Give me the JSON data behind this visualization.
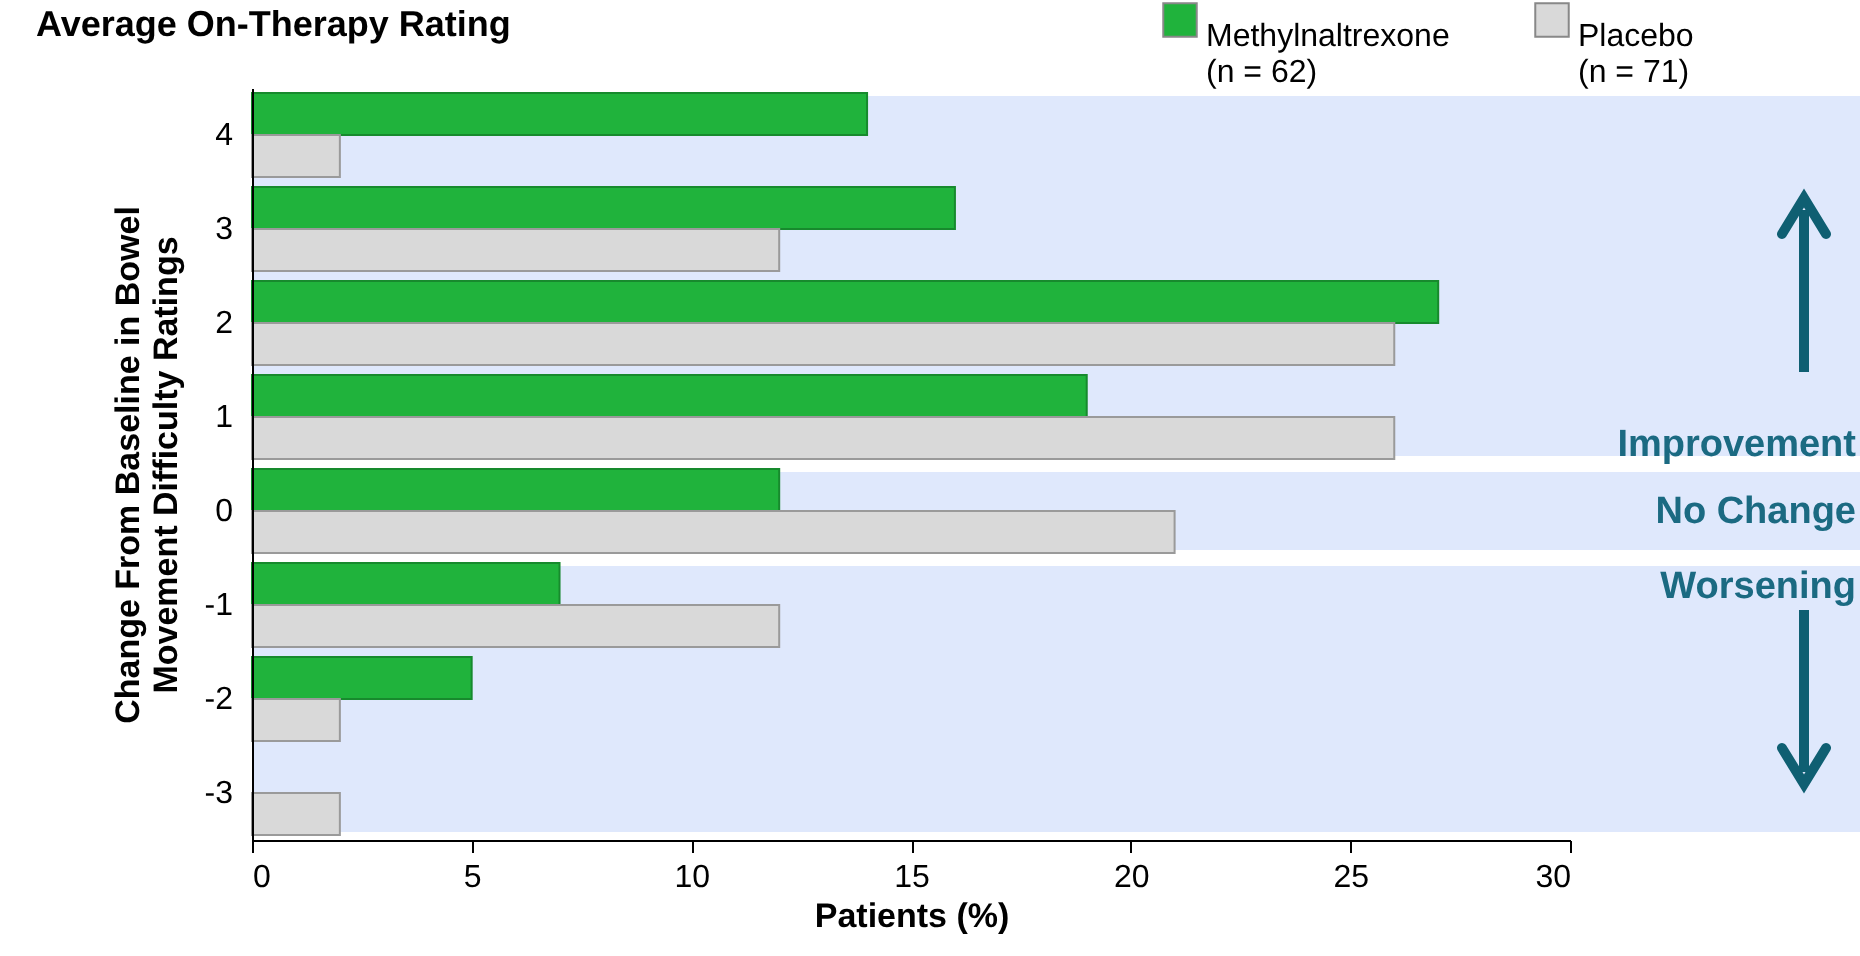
{
  "chart_data": {
    "type": "bar",
    "orientation": "horizontal",
    "title": "Average On-Therapy Rating",
    "xlabel": "Patients (%)",
    "ylabel": "Change From Baseline in Bowel Movement Difficulty Ratings",
    "categories": [
      "4",
      "3",
      "2",
      "1",
      "0",
      "-1",
      "-2",
      "-3"
    ],
    "series": [
      {
        "name": "Methylnaltrexone (n = 62)",
        "color": "#20b33c",
        "values": [
          14,
          16,
          27,
          19,
          12,
          7,
          5,
          null
        ]
      },
      {
        "name": "Placebo (n = 71)",
        "color": "#d9d9d9",
        "values": [
          2,
          12,
          26,
          26,
          21,
          12,
          2,
          2
        ]
      }
    ],
    "xlim": [
      0,
      30
    ],
    "xticks": [
      0,
      5,
      10,
      15,
      20,
      25,
      30
    ],
    "bands": [
      {
        "axis": "y",
        "from": "4",
        "to": "1",
        "label": "Improvement",
        "color": "#dfe8fc"
      },
      {
        "axis": "y",
        "from": "0",
        "to": "0",
        "label": "No Change",
        "color": "#dfe8fc"
      },
      {
        "axis": "y",
        "from": "-1",
        "to": "-3",
        "label": "Worsening",
        "color": "#dfe8fc"
      }
    ],
    "grid": false,
    "legend": "top right"
  }
}
